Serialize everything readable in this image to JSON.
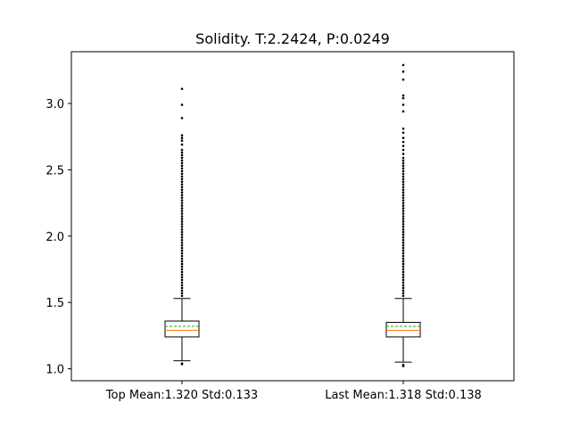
{
  "chart_data": {
    "type": "box",
    "title": "Solidity. T:2.2424, P:0.0249",
    "xlabel": "",
    "ylabel": "",
    "ylim": [
      0.91,
      3.39
    ],
    "yticks": [
      1.0,
      1.5,
      2.0,
      2.5,
      3.0
    ],
    "ytick_labels": [
      "1.0",
      "1.5",
      "2.0",
      "2.5",
      "3.0"
    ],
    "categories": [
      "Top Mean:1.320 Std:0.133",
      "Last Mean:1.318 Std:0.138"
    ],
    "boxes": [
      {
        "label": "Top Mean:1.320 Std:0.133",
        "whisker_low": 1.06,
        "q1": 1.24,
        "median": 1.29,
        "mean": 1.32,
        "q3": 1.36,
        "whisker_high": 1.53,
        "outliers_low": [
          1.04,
          1.035
        ],
        "outliers_high": [
          1.55,
          1.57,
          1.59,
          1.61,
          1.63,
          1.65,
          1.67,
          1.69,
          1.71,
          1.73,
          1.75,
          1.77,
          1.79,
          1.81,
          1.83,
          1.85,
          1.87,
          1.89,
          1.91,
          1.93,
          1.95,
          1.97,
          1.99,
          2.01,
          2.03,
          2.05,
          2.07,
          2.09,
          2.11,
          2.13,
          2.15,
          2.17,
          2.19,
          2.21,
          2.23,
          2.25,
          2.27,
          2.29,
          2.31,
          2.33,
          2.35,
          2.37,
          2.39,
          2.41,
          2.43,
          2.45,
          2.47,
          2.49,
          2.51,
          2.53,
          2.55,
          2.57,
          2.59,
          2.61,
          2.63,
          2.65,
          2.69,
          2.72,
          2.74,
          2.76,
          2.89,
          2.99,
          3.11
        ]
      },
      {
        "label": "Last Mean:1.318 Std:0.138",
        "whisker_low": 1.05,
        "q1": 1.24,
        "median": 1.29,
        "mean": 1.32,
        "q3": 1.35,
        "whisker_high": 1.53,
        "outliers_low": [
          1.03,
          1.02
        ],
        "outliers_high": [
          1.55,
          1.57,
          1.59,
          1.61,
          1.63,
          1.65,
          1.67,
          1.69,
          1.71,
          1.73,
          1.75,
          1.77,
          1.79,
          1.81,
          1.83,
          1.85,
          1.87,
          1.89,
          1.91,
          1.93,
          1.95,
          1.97,
          1.99,
          2.01,
          2.03,
          2.05,
          2.07,
          2.09,
          2.11,
          2.13,
          2.15,
          2.17,
          2.19,
          2.21,
          2.23,
          2.25,
          2.27,
          2.29,
          2.31,
          2.33,
          2.35,
          2.37,
          2.39,
          2.41,
          2.43,
          2.45,
          2.47,
          2.49,
          2.51,
          2.53,
          2.55,
          2.57,
          2.59,
          2.62,
          2.65,
          2.68,
          2.71,
          2.74,
          2.78,
          2.81,
          2.94,
          2.99,
          3.04,
          3.06,
          3.18,
          3.24,
          3.29
        ]
      }
    ],
    "grid": false,
    "colors": {
      "median": "#ff7f0e",
      "mean": "#2ca02c",
      "box": "#000000",
      "outlier": "#000000"
    }
  }
}
